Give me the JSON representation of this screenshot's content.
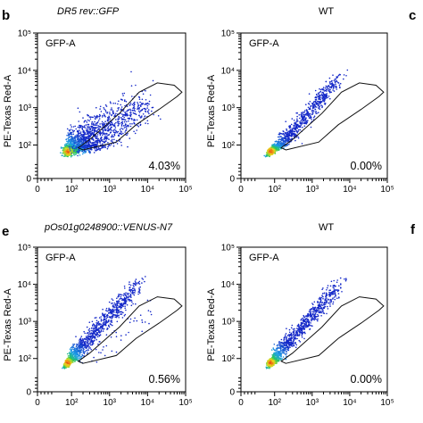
{
  "figure": {
    "side_letters": [
      "c",
      "f"
    ]
  },
  "chart_data": [
    {
      "type": "scatter",
      "panel_letter": "b",
      "title": "DR5 rev::GFP",
      "title_italic": true,
      "xlabel": "",
      "ylabel": "PE-Texas Red-A",
      "corner_label": "GFP-A",
      "x_scale": "log",
      "y_scale": "log",
      "xlim": [
        0,
        100000
      ],
      "ylim": [
        0,
        100000
      ],
      "x_ticks": [
        "0",
        "10²",
        "10³",
        "10⁴",
        "10⁵"
      ],
      "y_ticks": [
        "0",
        "10²",
        "10³",
        "10⁴",
        "10⁵"
      ],
      "gate_percent": "4.03%",
      "population": {
        "center": [
          50,
          30
        ],
        "spread": "wide",
        "events": 1500,
        "tail_events": 500
      }
    },
    {
      "type": "scatter",
      "panel_letter": "",
      "title": "WT",
      "title_italic": false,
      "xlabel": "",
      "ylabel": "PE-Texas Red-A",
      "corner_label": "GFP-A",
      "x_scale": "log",
      "y_scale": "log",
      "xlim": [
        0,
        100000
      ],
      "ylim": [
        0,
        100000
      ],
      "x_ticks": [
        "0",
        "10²",
        "10³",
        "10⁴",
        "10⁵"
      ],
      "y_ticks": [
        "0",
        "10²",
        "10³",
        "10⁴",
        "10⁵"
      ],
      "gate_percent": "0.00%",
      "population": {
        "center": [
          50,
          30
        ],
        "spread": "diagonal",
        "events": 1300,
        "tail_events": 0
      }
    },
    {
      "type": "scatter",
      "panel_letter": "e",
      "title": "pOs01g0248900::VENUS-N7",
      "title_italic": true,
      "xlabel": "",
      "ylabel": "PE-Texas Red-A",
      "corner_label": "GFP-A",
      "x_scale": "log",
      "y_scale": "log",
      "xlim": [
        0,
        100000
      ],
      "ylim": [
        0,
        100000
      ],
      "x_ticks": [
        "0",
        "10²",
        "10³",
        "10⁴",
        "10⁵"
      ],
      "y_ticks": [
        "0",
        "10²",
        "10³",
        "10⁴",
        "10⁵"
      ],
      "gate_percent": "0.56%",
      "population": {
        "center": [
          50,
          45
        ],
        "spread": "diagonal",
        "events": 1400,
        "tail_events": 60
      }
    },
    {
      "type": "scatter",
      "panel_letter": "",
      "title": "WT",
      "title_italic": false,
      "xlabel": "",
      "ylabel": "PE-Texas Red-A",
      "corner_label": "GFP-A",
      "x_scale": "log",
      "y_scale": "log",
      "xlim": [
        0,
        100000
      ],
      "ylim": [
        0,
        100000
      ],
      "x_ticks": [
        "0",
        "10²",
        "10³",
        "10⁴",
        "10⁵"
      ],
      "y_ticks": [
        "0",
        "10²",
        "10³",
        "10⁴",
        "10⁵"
      ],
      "gate_percent": "0.00%",
      "population": {
        "center": [
          50,
          45
        ],
        "spread": "diagonal",
        "events": 1300,
        "tail_events": 0
      }
    }
  ]
}
